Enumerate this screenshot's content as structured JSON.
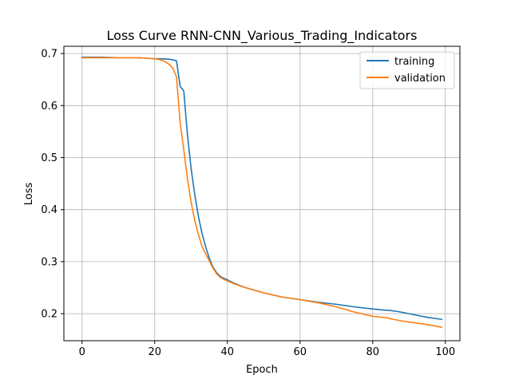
{
  "chart_data": {
    "type": "line",
    "title": "Loss Curve RNN-CNN_Various_Trading_Indicators",
    "xlabel": "Epoch",
    "ylabel": "Loss",
    "xlim": [
      -5,
      104
    ],
    "ylim": [
      0.148,
      0.714
    ],
    "xticks": [
      0,
      20,
      40,
      60,
      80,
      100
    ],
    "yticks": [
      0.2,
      0.3,
      0.4,
      0.5,
      0.6,
      0.7
    ],
    "xtick_labels": [
      "0",
      "20",
      "40",
      "60",
      "80",
      "100"
    ],
    "ytick_labels": [
      "0.2",
      "0.3",
      "0.4",
      "0.5",
      "0.6",
      "0.7"
    ],
    "grid": true,
    "legend_position": "top-right",
    "series": [
      {
        "name": "training",
        "color": "#1f77b4",
        "x": [
          0,
          5,
          10,
          15,
          18,
          20,
          22,
          24,
          25,
          26,
          27,
          28,
          29,
          30,
          31,
          32,
          33,
          34,
          35,
          36,
          37,
          38,
          39,
          40,
          42,
          45,
          50,
          55,
          60,
          65,
          70,
          75,
          80,
          83,
          85,
          87,
          90,
          95,
          99
        ],
        "y": [
          0.693,
          0.693,
          0.692,
          0.692,
          0.691,
          0.69,
          0.69,
          0.689,
          0.688,
          0.686,
          0.637,
          0.628,
          0.545,
          0.48,
          0.43,
          0.388,
          0.355,
          0.329,
          0.307,
          0.29,
          0.279,
          0.272,
          0.268,
          0.265,
          0.258,
          0.25,
          0.24,
          0.232,
          0.227,
          0.222,
          0.218,
          0.213,
          0.209,
          0.207,
          0.206,
          0.204,
          0.2,
          0.193,
          0.189
        ]
      },
      {
        "name": "validation",
        "color": "#ff7f0e",
        "x": [
          0,
          5,
          10,
          15,
          18,
          20,
          21,
          22,
          23,
          24,
          25,
          26,
          27,
          28,
          29,
          30,
          31,
          32,
          33,
          34,
          35,
          36,
          37,
          38,
          39,
          40,
          42,
          45,
          50,
          55,
          60,
          65,
          70,
          75,
          80,
          84,
          85,
          88,
          90,
          95,
          99
        ],
        "y": [
          0.692,
          0.692,
          0.692,
          0.692,
          0.691,
          0.69,
          0.689,
          0.687,
          0.684,
          0.679,
          0.672,
          0.655,
          0.567,
          0.515,
          0.46,
          0.415,
          0.38,
          0.353,
          0.33,
          0.315,
          0.302,
          0.288,
          0.277,
          0.27,
          0.266,
          0.263,
          0.257,
          0.25,
          0.24,
          0.232,
          0.227,
          0.221,
          0.213,
          0.203,
          0.195,
          0.192,
          0.19,
          0.186,
          0.184,
          0.179,
          0.174
        ]
      }
    ]
  }
}
